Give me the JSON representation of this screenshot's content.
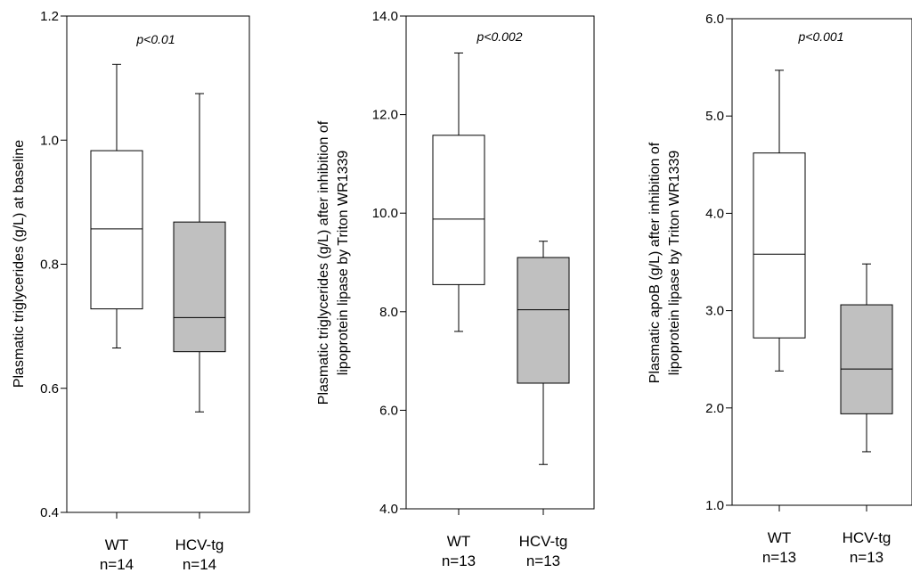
{
  "chart_data": [
    {
      "type": "boxplot",
      "ylabel": [
        "Plasmatic triglycerides (g/L) at baseline"
      ],
      "annotation": "p<0.01",
      "ylim": [
        0.4,
        1.2
      ],
      "yticks": [
        "0.4",
        "0.6",
        "0.8",
        "1.0",
        "1.2"
      ],
      "categories": [
        {
          "label": "WT",
          "n": "n=14"
        },
        {
          "label": "HCV-tg",
          "n": "n=14"
        }
      ],
      "boxes": [
        {
          "whisker_low": 0.665,
          "q1": 0.728,
          "median": 0.857,
          "q3": 0.983,
          "whisker_high": 1.122,
          "fill": "#ffffff"
        },
        {
          "whisker_low": 0.562,
          "q1": 0.659,
          "median": 0.714,
          "q3": 0.868,
          "whisker_high": 1.075,
          "fill": "#c0c0c0"
        }
      ]
    },
    {
      "type": "boxplot",
      "ylabel": [
        "Plasmatic triglycerides (g/L) after inhibition of",
        "lipoprotein lipase by Triton WR1339"
      ],
      "annotation": "p<0.002",
      "ylim": [
        4.0,
        14.0
      ],
      "yticks": [
        "4.0",
        "6.0",
        "8.0",
        "10.0",
        "12.0",
        "14.0"
      ],
      "categories": [
        {
          "label": "WT",
          "n": "n=13"
        },
        {
          "label": "HCV-tg",
          "n": "n=13"
        }
      ],
      "boxes": [
        {
          "whisker_low": 7.6,
          "q1": 8.55,
          "median": 9.88,
          "q3": 11.58,
          "whisker_high": 13.25,
          "fill": "#ffffff"
        },
        {
          "whisker_low": 4.9,
          "q1": 6.55,
          "median": 8.04,
          "q3": 9.1,
          "whisker_high": 9.43,
          "fill": "#c0c0c0"
        }
      ]
    },
    {
      "type": "boxplot",
      "ylabel": [
        "Plasmatic apoB (g/L) after inhibition of",
        "lipoprotein lipase by Triton WR1339"
      ],
      "annotation": "p<0.001",
      "ylim": [
        1.0,
        6.0
      ],
      "yticks": [
        "1.0",
        "2.0",
        "3.0",
        "4.0",
        "5.0",
        "6.0"
      ],
      "categories": [
        {
          "label": "WT",
          "n": "n=13"
        },
        {
          "label": "HCV-tg",
          "n": "n=13"
        }
      ],
      "boxes": [
        {
          "whisker_low": 2.38,
          "q1": 2.72,
          "median": 3.58,
          "q3": 4.62,
          "whisker_high": 5.47,
          "fill": "#ffffff"
        },
        {
          "whisker_low": 1.55,
          "q1": 1.94,
          "median": 2.4,
          "q3": 3.06,
          "whisker_high": 3.48,
          "fill": "#c0c0c0"
        }
      ]
    }
  ]
}
